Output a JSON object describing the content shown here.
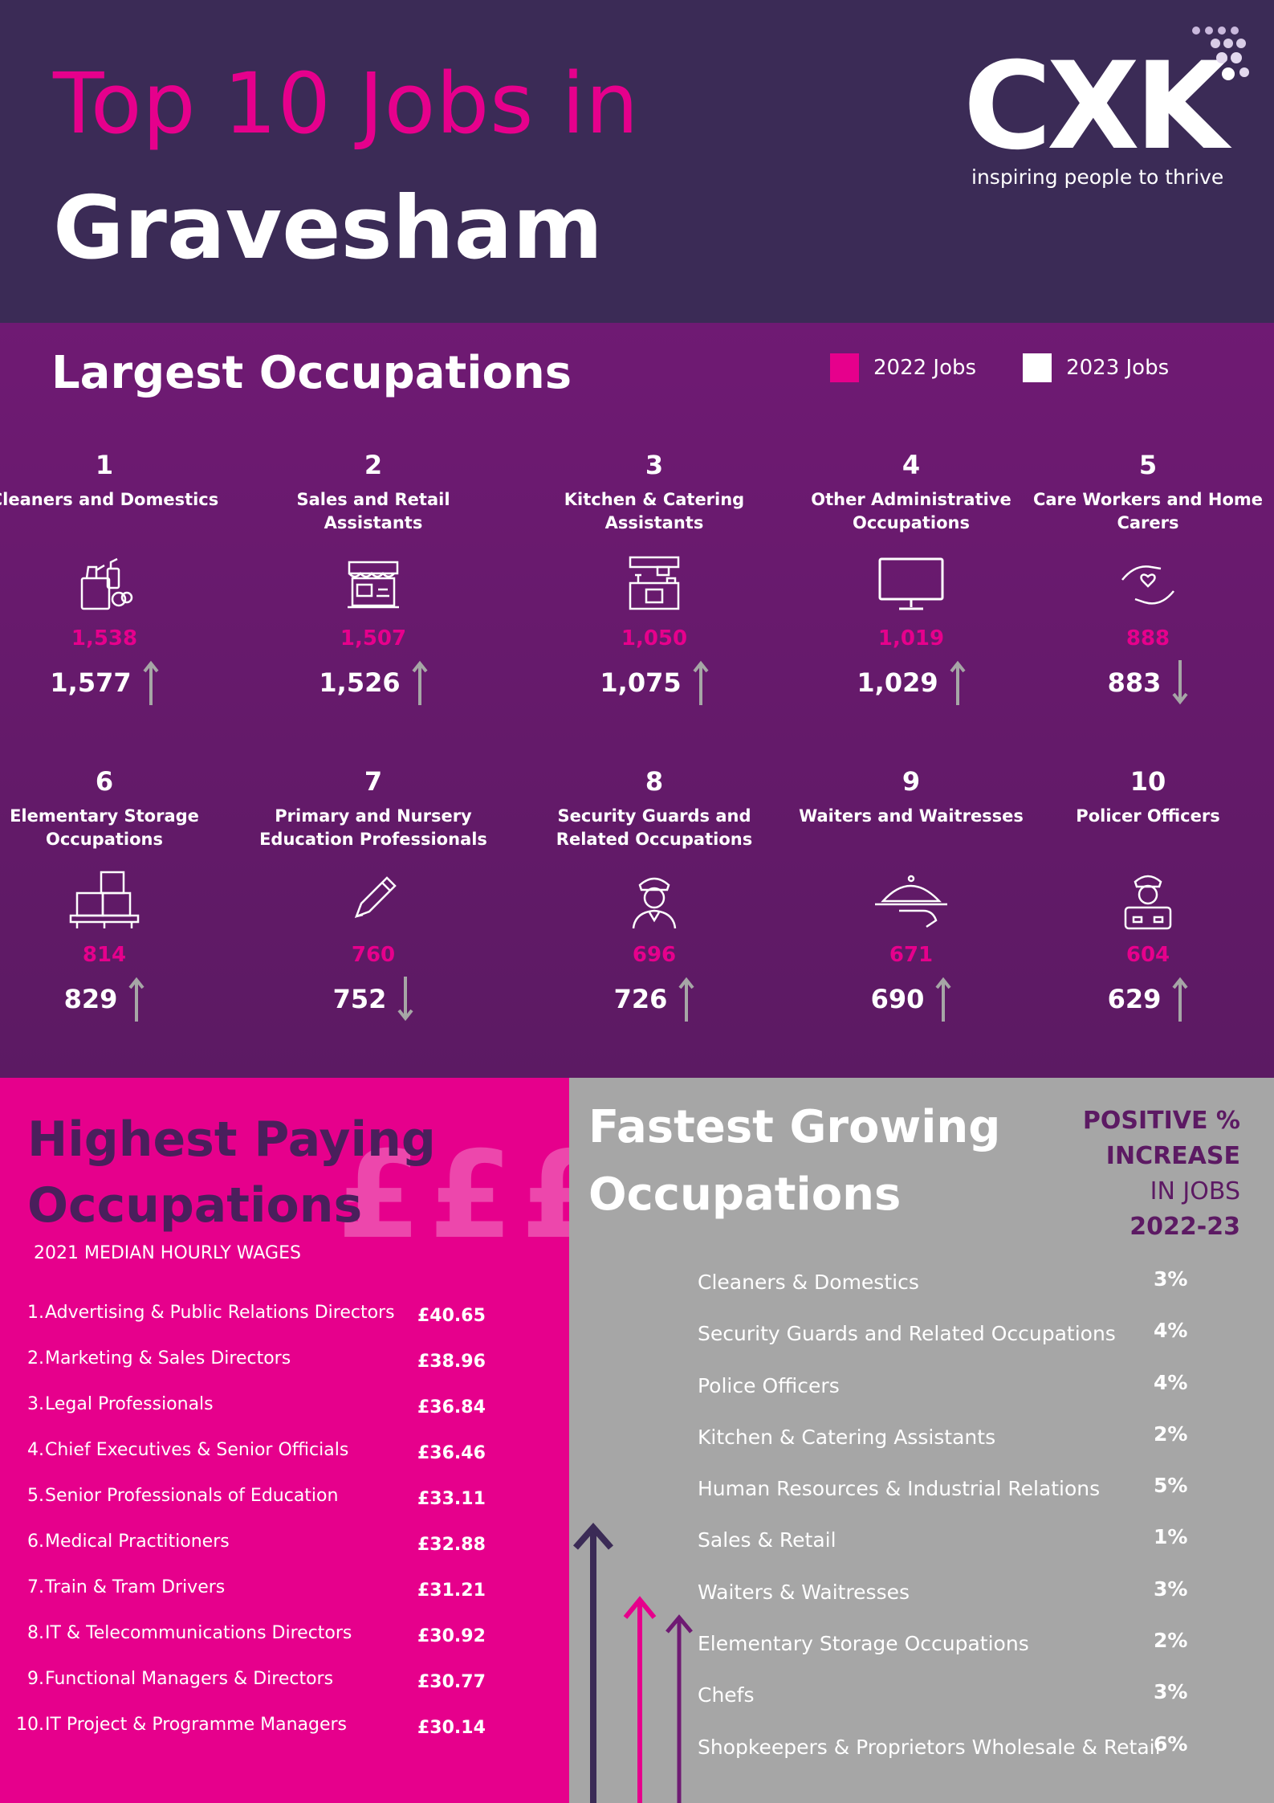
{
  "header": {
    "title_line1": "Top 10 Jobs in",
    "title_line2": "Gravesham",
    "logo_text": "CXK",
    "logo_tagline": "inspiring people to thrive"
  },
  "largest": {
    "title": "Largest Occupations",
    "legend": [
      {
        "label": "2022 Jobs",
        "color": "#e6008c"
      },
      {
        "label": "2023 Jobs",
        "color": "#ffffff"
      }
    ],
    "items": [
      {
        "rank": "1",
        "name": "Cleaners and Domestics",
        "icon": "cleaning-supplies-icon",
        "v2022": "1,538",
        "v2023": "1,577",
        "trend": "up"
      },
      {
        "rank": "2",
        "name": "Sales and Retail Assistants",
        "icon": "shop-stall-icon",
        "v2022": "1,507",
        "v2023": "1,526",
        "trend": "up"
      },
      {
        "rank": "3",
        "name": "Kitchen & Catering Assistants",
        "icon": "kitchen-icon",
        "v2022": "1,050",
        "v2023": "1,075",
        "trend": "up"
      },
      {
        "rank": "4",
        "name": "Other Administrative Occupations",
        "icon": "monitor-icon",
        "v2022": "1,019",
        "v2023": "1,029",
        "trend": "up"
      },
      {
        "rank": "5",
        "name": "Care Workers and Home Carers",
        "icon": "caring-hands-icon",
        "v2022": "888",
        "v2023": "883",
        "trend": "down"
      },
      {
        "rank": "6",
        "name": "Elementary Storage Occupations",
        "icon": "boxes-pallet-icon",
        "v2022": "814",
        "v2023": "829",
        "trend": "up"
      },
      {
        "rank": "7",
        "name": "Primary and Nursery Education Professionals",
        "icon": "pencil-icon",
        "v2022": "760",
        "v2023": "752",
        "trend": "down"
      },
      {
        "rank": "8",
        "name": "Security Guards and Related Occupations",
        "icon": "security-guard-icon",
        "v2022": "696",
        "v2023": "726",
        "trend": "up"
      },
      {
        "rank": "9",
        "name": "Waiters and Waitresses",
        "icon": "serving-cloche-icon",
        "v2022": "671",
        "v2023": "690",
        "trend": "up"
      },
      {
        "rank": "10",
        "name": "Policer Officers",
        "icon": "police-officer-icon",
        "v2022": "604",
        "v2023": "629",
        "trend": "up"
      }
    ]
  },
  "paying": {
    "title_line1": "Highest Paying",
    "title_line2": "Occupations",
    "decor": "£££",
    "subtitle": "2021 MEDIAN HOURLY WAGES",
    "items": [
      {
        "num": "1.",
        "name": "Advertising & Public Relations Directors",
        "wage": "£40.65"
      },
      {
        "num": "2.",
        "name": "Marketing & Sales Directors",
        "wage": "£38.96"
      },
      {
        "num": "3.",
        "name": "Legal Professionals",
        "wage": "£36.84"
      },
      {
        "num": "4.",
        "name": "Chief Executives & Senior Officials",
        "wage": "£36.46"
      },
      {
        "num": "5.",
        "name": "Senior Professionals of Education",
        "wage": "£33.11"
      },
      {
        "num": "6.",
        "name": "Medical Practitioners",
        "wage": "£32.88"
      },
      {
        "num": "7.",
        "name": "Train & Tram Drivers",
        "wage": "£31.21"
      },
      {
        "num": "8.",
        "name": "IT & Telecommunications Directors",
        "wage": "£30.92"
      },
      {
        "num": "9.",
        "name": "Functional Managers & Directors",
        "wage": "£30.77"
      },
      {
        "num": "10.",
        "name": "IT Project & Programme Managers",
        "wage": "£30.14"
      }
    ]
  },
  "growing": {
    "title_line1": "Fastest Growing",
    "title_line2": "Occupations",
    "note_line1": "POSITIVE %",
    "note_line2": "INCREASE",
    "note_line3": "IN JOBS",
    "note_line4": "2022-23",
    "items": [
      {
        "name": "Cleaners & Domestics",
        "pct": "3%"
      },
      {
        "name": "Security Guards and Related Occupations",
        "pct": "4%"
      },
      {
        "name": "Police Officers",
        "pct": "4%"
      },
      {
        "name": "Kitchen & Catering Assistants",
        "pct": "2%"
      },
      {
        "name": "Human Resources & Industrial Relations",
        "pct": "5%"
      },
      {
        "name": "Sales & Retail",
        "pct": "1%"
      },
      {
        "name": "Waiters & Waitresses",
        "pct": "3%"
      },
      {
        "name": "Elementary Storage Occupations",
        "pct": "2%"
      },
      {
        "name": "Chefs",
        "pct": "3%"
      },
      {
        "name": "Shopkeepers & Proprietors Wholesale & Retail",
        "pct": "6%"
      }
    ]
  },
  "colors": {
    "header_bg": "#3b2b56",
    "section_purple": "#6f1a73",
    "accent_pink": "#e6008c",
    "panel_grey": "#a6a6a6",
    "arrow_grey": "#a6a6a6"
  }
}
